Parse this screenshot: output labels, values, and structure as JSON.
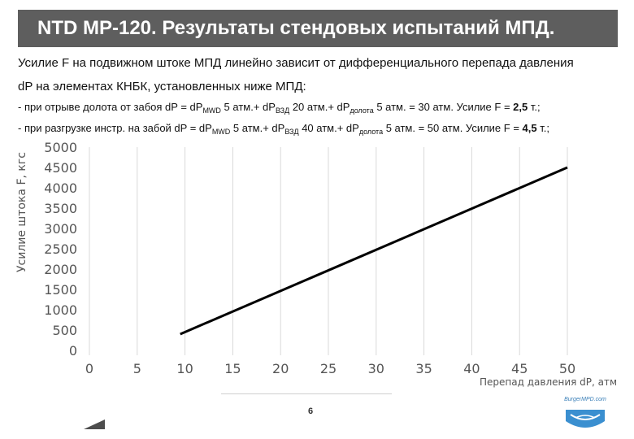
{
  "header": {
    "title": "NTD MP-120. Результаты стендовых испытаний МПД."
  },
  "intro": {
    "line1": "Усилие F на подвижном штоке МПД линейно зависит от дифференциального перепада давления",
    "line2": "dP на элементах КНБК, установленных ниже МПД:"
  },
  "case1": {
    "a": "- при отрыве долота от забоя dP = dP",
    "sub_mwd": "MWD",
    "b": " 5 атм.+ dP",
    "sub_vzd": "ВЗД",
    "c": " 20 атм.+ dP",
    "sub_dol": "долота",
    "d": " 5 атм. = 30 атм. Усилие F = ",
    "force": "2,5",
    "e": " т.;"
  },
  "case2": {
    "a": "- при разгрузке инстр. на забой dP = dP",
    "sub_mwd": "MWD",
    "b": " 5 атм.+ dP",
    "sub_vzd": "ВЗД",
    "c": " 40 атм.+ dP",
    "sub_dol": "долота",
    "d": " 5 атм. = 50 атм. Усилие F = ",
    "force": "4,5",
    "e": " т.;"
  },
  "chart_data": {
    "type": "line",
    "xlabel": "Перепад давления dP, атм",
    "ylabel": "Усилие штока F, кгс",
    "xlim": [
      0,
      50
    ],
    "ylim": [
      0,
      5000
    ],
    "xticks": [
      0,
      5,
      10,
      15,
      20,
      25,
      30,
      35,
      40,
      45,
      50
    ],
    "yticks": [
      0,
      500,
      1000,
      1500,
      2000,
      2500,
      3000,
      3500,
      4000,
      4500,
      5000
    ],
    "grid": "vertical",
    "series": [
      {
        "x": [
          9.5,
          50
        ],
        "y": [
          400,
          4500
        ]
      }
    ],
    "line_color": "#000000",
    "grid_color": "#d9d9d9"
  },
  "footer": {
    "page_number": "6",
    "logo_text": "BurgerMPD.com"
  }
}
